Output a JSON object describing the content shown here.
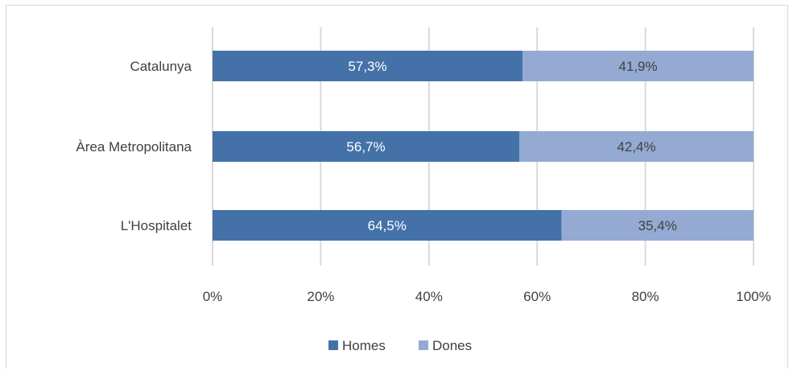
{
  "chart_data": {
    "type": "bar",
    "orientation": "horizontal",
    "stacked": true,
    "categories": [
      "Catalunya",
      "Àrea Metropolitana",
      "L'Hospitalet"
    ],
    "series": [
      {
        "name": "Homes",
        "values": [
          57.3,
          56.7,
          64.5
        ],
        "labels": [
          "57,3%",
          "56,7%",
          "64,5%"
        ],
        "color": "#4472a8"
      },
      {
        "name": "Dones",
        "values": [
          41.9,
          42.4,
          35.4
        ],
        "labels": [
          "41,9%",
          "42,4%",
          "35,4%"
        ],
        "color": "#94aad3"
      }
    ],
    "xlim": [
      0,
      100
    ],
    "x_ticks": [
      "0%",
      "20%",
      "40%",
      "60%",
      "80%",
      "100%"
    ],
    "grid": true,
    "legend_position": "bottom"
  }
}
